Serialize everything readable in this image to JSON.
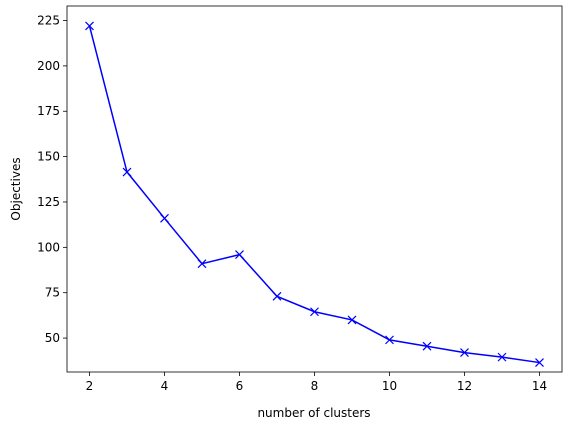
{
  "chart_data": {
    "type": "line",
    "x_label": "number of clusters",
    "y_label": "Objectives",
    "x": [
      2,
      3,
      4,
      5,
      6,
      7,
      8,
      9,
      10,
      11,
      12,
      13,
      14
    ],
    "series": [
      {
        "name": "Objectives",
        "color": "#0000ff",
        "marker": "x",
        "values": [
          222,
          141.5,
          116,
          91,
          96,
          73,
          64.5,
          60,
          49,
          45.5,
          42,
          39.5,
          36.5
        ]
      }
    ],
    "xlim": [
      1.4,
      14.6
    ],
    "xticks": [
      2,
      4,
      6,
      8,
      10,
      12,
      14
    ],
    "ylim": [
      31.3,
      233
    ],
    "yticks": [
      50,
      75,
      100,
      125,
      150,
      175,
      200,
      225
    ]
  }
}
